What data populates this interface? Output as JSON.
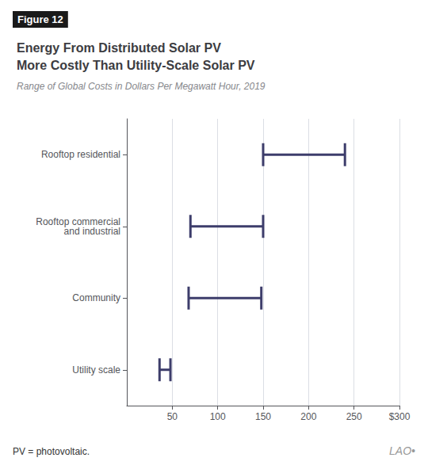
{
  "chart_data": {
    "type": "range",
    "orientation": "horizontal",
    "title": "Energy From Distributed Solar PV\nMore Costly Than Utility-Scale Solar PV",
    "subtitle": "Range of Global Costs in Dollars Per Megawatt Hour, 2019",
    "annotations": [
      "Figure 12",
      "PV = photovoltaic.",
      "LAO•"
    ],
    "categories": [
      "Rooftop residential",
      "Rooftop commercial\nand industrial",
      "Community",
      "Utility scale"
    ],
    "values": [
      [
        150,
        240
      ],
      [
        70,
        150
      ],
      [
        68,
        148
      ],
      [
        36,
        48
      ]
    ],
    "color": "#3d3d6b",
    "xlim": [
      0,
      300
    ],
    "xticks": [
      50,
      100,
      150,
      200,
      250,
      {
        "value": 300,
        "label": "$300"
      }
    ],
    "grid": true
  }
}
